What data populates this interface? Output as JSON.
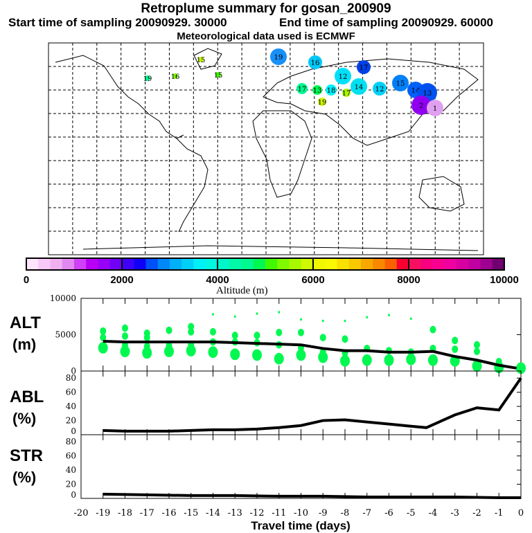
{
  "header": {
    "title": "Retroplume summary for gosan_200909",
    "start": "Start time of sampling 20090929. 30000",
    "end": "End time of sampling 20090929. 60000",
    "met": "Meteorological data used is ECMWF"
  },
  "colorbar": {
    "label": "Altitude (m)",
    "ticks": [
      "0",
      "2000",
      "4000",
      "6000",
      "8000",
      "10000"
    ],
    "colors": [
      "#fde6fb",
      "#f8c8f8",
      "#f0b0f0",
      "#e088f0",
      "#d040f8",
      "#b800f8",
      "#9800f8",
      "#7000f8",
      "#4000f8",
      "#1000f8",
      "#0050f8",
      "#0088f8",
      "#00b0f8",
      "#00d0f8",
      "#00f0f8",
      "#00f8e0",
      "#00f8c8",
      "#00f8a8",
      "#00f890",
      "#00f850",
      "#40f800",
      "#80f800",
      "#a8f800",
      "#d0f800",
      "#f0f800",
      "#f8f800",
      "#f8e000",
      "#f8c800",
      "#f8a800",
      "#f88800",
      "#f86000",
      "#f80030",
      "#f81060",
      "#f80080",
      "#f80090",
      "#f000a0",
      "#d800a0",
      "#c000a0",
      "#a00090",
      "#700070"
    ]
  },
  "map_plumes": [
    {
      "label": "19",
      "color": "#1890f8"
    },
    {
      "label": "16",
      "color": "#00c8f8"
    },
    {
      "label": "17",
      "color": "#0040e8"
    },
    {
      "label": "12",
      "color": "#00e0f8"
    },
    {
      "label": "14",
      "color": "#00e0f0"
    },
    {
      "label": "12",
      "color": "#00d0f8"
    },
    {
      "label": "15",
      "color": "#0080f8"
    },
    {
      "label": "14",
      "color": "#0060f8"
    },
    {
      "label": "13",
      "color": "#0050f0"
    },
    {
      "label": "2",
      "color": "#9000f0"
    },
    {
      "label": "1",
      "color": "#e0a0f0"
    },
    {
      "label": "17",
      "color": "#00f890"
    },
    {
      "label": "13",
      "color": "#00f850"
    },
    {
      "label": "18",
      "color": "#00f0f8"
    },
    {
      "label": "17",
      "color": "#a8f800"
    },
    {
      "label": "19",
      "color": "#d0f800"
    },
    {
      "label": "15",
      "color": "#c0f800"
    },
    {
      "label": "16",
      "color": "#80f800"
    },
    {
      "label": "15",
      "color": "#40f800"
    },
    {
      "label": "19",
      "color": "#00f890"
    }
  ],
  "chart_data": [
    {
      "type": "line",
      "panel": "ALT",
      "ylabel": "ALT\n(m)",
      "ylabel_top": "ALT",
      "ylabel_unit": "(m)",
      "ylim": [
        0,
        10000
      ],
      "yticks": [
        "10000",
        "5000",
        "0"
      ],
      "x": [
        -19,
        -18,
        -17,
        -16,
        -15,
        -14,
        -13,
        -12,
        -11,
        -10,
        -9,
        -8,
        -7,
        -6,
        -5,
        -4,
        -3,
        -2,
        -1,
        -0.2
      ],
      "values": [
        4100,
        4000,
        4000,
        4000,
        4000,
        4000,
        3900,
        3800,
        3700,
        3600,
        3100,
        2800,
        2800,
        2600,
        2600,
        2700,
        2000,
        1500,
        800,
        400
      ],
      "clusters": [
        {
          "x": -19,
          "alts": [
            5500,
            4600,
            3200
          ]
        },
        {
          "x": -18,
          "alts": [
            5900,
            4800,
            3600,
            2700
          ]
        },
        {
          "x": -17,
          "alts": [
            5200,
            4600,
            3400,
            2500
          ]
        },
        {
          "x": -16,
          "alts": [
            5600,
            3500,
            2700
          ]
        },
        {
          "x": -15,
          "alts": [
            6100,
            5400,
            3600,
            2800
          ]
        },
        {
          "x": -14,
          "alts": [
            7800,
            5400,
            4000,
            2600
          ]
        },
        {
          "x": -13,
          "alts": [
            7500,
            4900,
            4000,
            2300
          ]
        },
        {
          "x": -12,
          "alts": [
            7900,
            4900,
            3900,
            2200
          ]
        },
        {
          "x": -11,
          "alts": [
            8100,
            5300,
            3600,
            1700
          ]
        },
        {
          "x": -10,
          "alts": [
            7100,
            5300,
            3200,
            2200
          ]
        },
        {
          "x": -9,
          "alts": [
            6900,
            4600,
            2600,
            1900
          ]
        },
        {
          "x": -8,
          "alts": [
            6900,
            4400,
            2500,
            1400
          ]
        },
        {
          "x": -7,
          "alts": [
            7400,
            3100,
            1500
          ]
        },
        {
          "x": -6,
          "alts": [
            7700,
            2800,
            1500
          ]
        },
        {
          "x": -5,
          "alts": [
            7200,
            2600,
            1600
          ]
        },
        {
          "x": -4,
          "alts": [
            5700,
            3100,
            1500
          ]
        },
        {
          "x": -3,
          "alts": [
            4200,
            3000,
            1400
          ]
        },
        {
          "x": -2,
          "alts": [
            3600,
            2700,
            700
          ]
        },
        {
          "x": -1,
          "alts": [
            1300,
            500
          ]
        },
        {
          "x": 0,
          "alts": [
            400
          ]
        }
      ]
    },
    {
      "type": "line",
      "panel": "ABL",
      "ylabel_top": "ABL",
      "ylabel_unit": "(%)",
      "ylim": [
        0,
        90
      ],
      "yticks": [
        "80",
        "60",
        "40",
        "20",
        "0"
      ],
      "x": [
        -19,
        -18,
        -17,
        -16,
        -15,
        -14,
        -13,
        -12,
        -11,
        -10,
        -9,
        -8,
        -7,
        -6,
        -5,
        -4.3,
        -3,
        -2,
        -1,
        0
      ],
      "values": [
        6,
        5,
        5,
        5,
        6,
        7,
        7,
        8,
        10,
        13,
        20,
        21,
        18,
        15,
        12,
        10,
        28,
        38,
        35,
        80
      ]
    },
    {
      "type": "line",
      "panel": "STR",
      "ylabel_top": "STR",
      "ylabel_unit": "(%)",
      "ylim": [
        0,
        90
      ],
      "yticks": [
        "80",
        "60",
        "40",
        "20",
        "0"
      ],
      "x": [
        -19,
        -17,
        -15,
        -13,
        -11,
        -9,
        -7,
        -5,
        -3,
        -1,
        0
      ],
      "values": [
        6,
        5,
        4,
        4,
        3,
        3,
        2,
        2,
        2,
        1,
        1
      ]
    }
  ],
  "xaxis": {
    "label": "Travel time (days)",
    "ticks": [
      "-20",
      "-19",
      "-18",
      "-17",
      "-16",
      "-15",
      "-14",
      "-13",
      "-12",
      "-11",
      "-10",
      "-9",
      "-8",
      "-7",
      "-6",
      "-5",
      "-4",
      "-3",
      "-2",
      "-1",
      "0"
    ]
  }
}
